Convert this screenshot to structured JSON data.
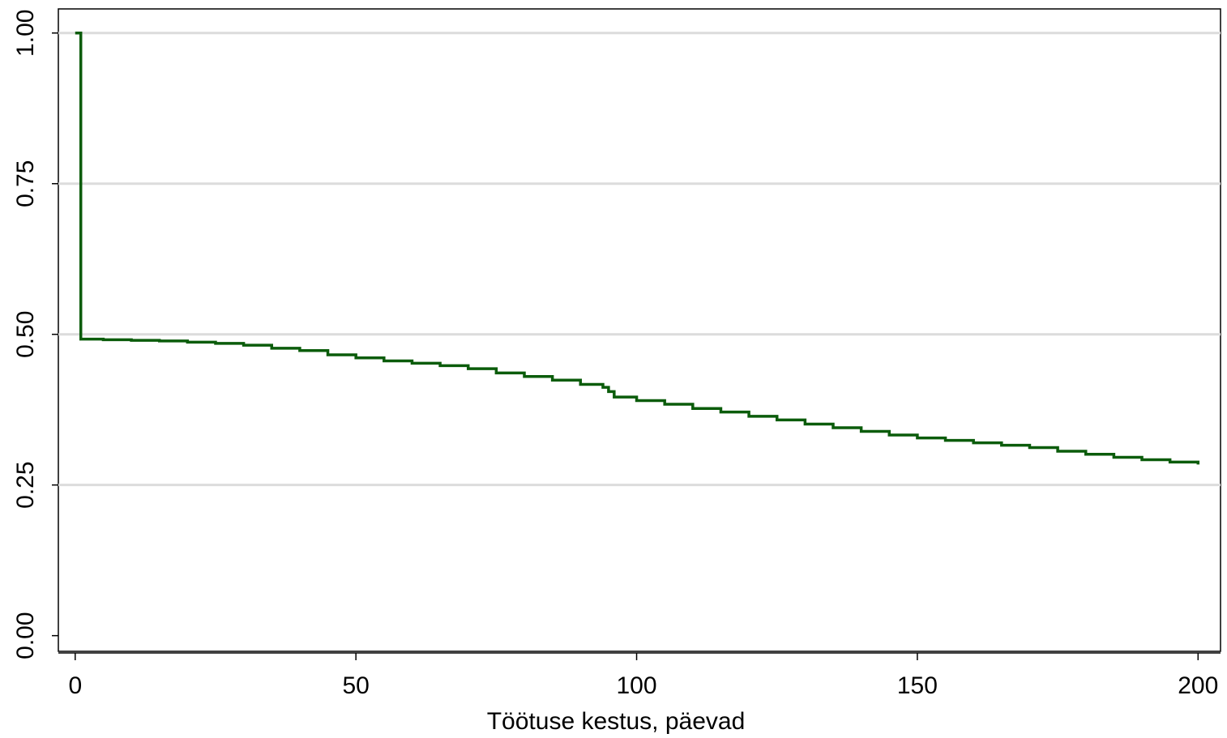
{
  "chart_data": {
    "type": "line",
    "title": "",
    "xlabel": "Töötuse kestus, päevad",
    "ylabel": "",
    "xlim": [
      -3,
      204
    ],
    "ylim": [
      -0.026,
      1.04
    ],
    "x_ticks": [
      0,
      50,
      100,
      150,
      200
    ],
    "x_tick_labels": [
      "0",
      "50",
      "100",
      "150",
      "200"
    ],
    "y_ticks": [
      0,
      0.25,
      0.5,
      0.75,
      1
    ],
    "y_tick_labels": [
      "0.00",
      "0.25",
      "0.50",
      "0.75",
      "1.00"
    ],
    "grid": "horizontal",
    "line_color": "#0b5c0b",
    "grid_color": "#dcdcdc",
    "series": [
      {
        "step": true,
        "x": [
          0,
          1,
          1,
          5,
          10,
          15,
          20,
          25,
          30,
          35,
          40,
          45,
          50,
          55,
          60,
          65,
          70,
          75,
          80,
          85,
          90,
          94,
          95,
          96,
          100,
          105,
          110,
          115,
          120,
          125,
          130,
          135,
          140,
          145,
          150,
          155,
          160,
          165,
          170,
          175,
          180,
          185,
          190,
          195,
          200
        ],
        "y": [
          1.0,
          1.0,
          0.492,
          0.491,
          0.49,
          0.489,
          0.487,
          0.485,
          0.482,
          0.477,
          0.473,
          0.466,
          0.461,
          0.456,
          0.452,
          0.448,
          0.443,
          0.436,
          0.43,
          0.424,
          0.417,
          0.412,
          0.405,
          0.396,
          0.39,
          0.384,
          0.377,
          0.371,
          0.364,
          0.358,
          0.351,
          0.345,
          0.339,
          0.333,
          0.328,
          0.324,
          0.32,
          0.316,
          0.312,
          0.306,
          0.301,
          0.296,
          0.292,
          0.288,
          0.284
        ]
      }
    ]
  }
}
